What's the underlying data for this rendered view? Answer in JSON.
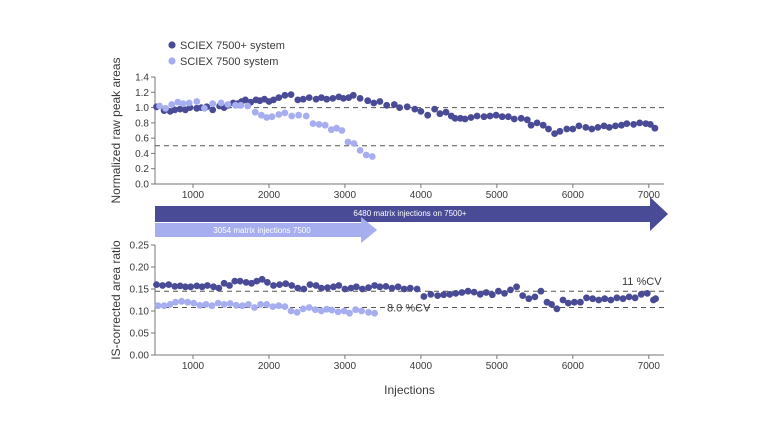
{
  "chart_data": [
    {
      "type": "scatter",
      "ylabel": "Normalized raw peak areas",
      "xlim": [
        500,
        7200
      ],
      "ylim": [
        0.0,
        1.4
      ],
      "yticks": [
        "0.0",
        "0.2",
        "0.4",
        "0.6",
        "0.8",
        "1.0",
        "1.2",
        "1.4"
      ],
      "xticks": [
        "1000",
        "2000",
        "3000",
        "4000",
        "5000",
        "6000",
        "7000"
      ],
      "reference_lines": [
        1.0,
        0.5
      ],
      "legend": [
        {
          "name": "SCIEX 7500+ system",
          "color": "#4a4b96"
        },
        {
          "name": "SCIEX 7500 system",
          "color": "#a6aef0"
        }
      ],
      "series": [
        {
          "name": "SCIEX 7500+ system",
          "color": "#4a4b96",
          "x": [
            520,
            620,
            700,
            760,
            830,
            900,
            960,
            1050,
            1110,
            1180,
            1260,
            1350,
            1410,
            1460,
            1530,
            1590,
            1640,
            1690,
            1760,
            1830,
            1880,
            1940,
            2000,
            2060,
            2130,
            2210,
            2290,
            2380,
            2450,
            2530,
            2620,
            2690,
            2760,
            2840,
            2920,
            2980,
            3050,
            3110,
            3200,
            3300,
            3380,
            3460,
            3550,
            3650,
            3720,
            3820,
            3920,
            4000,
            4090,
            4180,
            4250,
            4330,
            4400,
            4450,
            4520,
            4580,
            4660,
            4740,
            4830,
            4910,
            4990,
            5070,
            5150,
            5230,
            5320,
            5400,
            5450,
            5530,
            5610,
            5680,
            5760,
            5830,
            5920,
            6000,
            6080,
            6170,
            6250,
            6330,
            6410,
            6480,
            6560,
            6640,
            6710,
            6800,
            6880,
            6960,
            7020,
            7080
          ],
          "values": [
            1.01,
            0.96,
            0.95,
            0.97,
            0.98,
            0.97,
            1.0,
            0.99,
            1.0,
            1.01,
            0.97,
            1.02,
            1.0,
            1.03,
            1.06,
            1.05,
            1.08,
            1.1,
            1.07,
            1.1,
            1.09,
            1.11,
            1.08,
            1.1,
            1.13,
            1.16,
            1.17,
            1.1,
            1.11,
            1.13,
            1.11,
            1.13,
            1.11,
            1.12,
            1.14,
            1.12,
            1.13,
            1.16,
            1.12,
            1.09,
            1.06,
            1.08,
            1.03,
            1.04,
            1.0,
            1.01,
            0.98,
            0.95,
            0.9,
            0.98,
            0.92,
            0.94,
            0.89,
            0.86,
            0.86,
            0.85,
            0.87,
            0.89,
            0.88,
            0.89,
            0.9,
            0.88,
            0.88,
            0.85,
            0.86,
            0.84,
            0.77,
            0.8,
            0.77,
            0.72,
            0.66,
            0.69,
            0.72,
            0.72,
            0.76,
            0.74,
            0.72,
            0.74,
            0.76,
            0.74,
            0.76,
            0.77,
            0.79,
            0.78,
            0.8,
            0.79,
            0.78,
            0.73
          ]
        },
        {
          "name": "SCIEX 7500 system",
          "color": "#a6aef0",
          "x": [
            560,
            640,
            720,
            800,
            870,
            950,
            1050,
            1150,
            1260,
            1370,
            1460,
            1560,
            1630,
            1720,
            1820,
            1900,
            1970,
            2040,
            2130,
            2210,
            2300,
            2390,
            2490,
            2580,
            2660,
            2740,
            2820,
            2890,
            2960,
            3040,
            3120,
            3200,
            3280,
            3360
          ],
          "values": [
            1.02,
            0.99,
            1.04,
            1.07,
            1.05,
            1.06,
            1.08,
            0.99,
            1.05,
            1.06,
            1.04,
            1.03,
            1.03,
            1.02,
            0.94,
            0.9,
            0.87,
            0.88,
            0.91,
            0.93,
            0.89,
            0.9,
            0.89,
            0.79,
            0.78,
            0.77,
            0.71,
            0.73,
            0.7,
            0.55,
            0.53,
            0.44,
            0.38,
            0.36
          ]
        }
      ],
      "arrows": [
        {
          "label": "6480 matrix injections on 7500+",
          "from": 500,
          "to": 7200,
          "color": "#4a4b96"
        },
        {
          "label": "3054 matrix injections 7500",
          "from": 500,
          "to": 3450,
          "color": "#a6aef0"
        }
      ]
    },
    {
      "type": "scatter",
      "xlabel": "Injections",
      "ylabel": "IS-corrected area ratio",
      "xlim": [
        500,
        7200
      ],
      "ylim": [
        0.0,
        0.25
      ],
      "yticks": [
        "0.00",
        "0.05",
        "0.10",
        "0.15",
        "0.20",
        "0.25"
      ],
      "xticks": [
        "1000",
        "2000",
        "3000",
        "4000",
        "5000",
        "6000",
        "7000"
      ],
      "reference_lines": [
        0.145,
        0.108
      ],
      "annotations": [
        {
          "text": "11 %CV",
          "x": 7050,
          "y": 0.145
        },
        {
          "text": "8.0 %CV",
          "x": 3400,
          "y": 0.108
        }
      ],
      "series": [
        {
          "name": "SCIEX 7500+ system",
          "color": "#4a4b96",
          "x": [
            520,
            600,
            680,
            760,
            830,
            900,
            970,
            1050,
            1120,
            1190,
            1270,
            1340,
            1410,
            1480,
            1550,
            1620,
            1700,
            1770,
            1840,
            1910,
            1980,
            2060,
            2140,
            2220,
            2300,
            2380,
            2460,
            2540,
            2620,
            2690,
            2770,
            2850,
            2920,
            3000,
            3080,
            3150,
            3230,
            3310,
            3390,
            3460,
            3540,
            3620,
            3700,
            3780,
            3860,
            3950,
            4040,
            4130,
            4220,
            4300,
            4380,
            4460,
            4540,
            4620,
            4700,
            4780,
            4860,
            4940,
            5020,
            5100,
            5180,
            5260,
            5340,
            5420,
            5500,
            5580,
            5660,
            5720,
            5790,
            5870,
            5940,
            6020,
            6100,
            6180,
            6260,
            6340,
            6420,
            6500,
            6580,
            6660,
            6740,
            6820,
            6900,
            6980,
            7060,
            7090
          ],
          "values": [
            0.16,
            0.158,
            0.16,
            0.156,
            0.157,
            0.155,
            0.155,
            0.157,
            0.155,
            0.158,
            0.155,
            0.152,
            0.163,
            0.158,
            0.168,
            0.168,
            0.165,
            0.163,
            0.168,
            0.172,
            0.165,
            0.158,
            0.16,
            0.162,
            0.158,
            0.152,
            0.15,
            0.16,
            0.158,
            0.152,
            0.153,
            0.155,
            0.158,
            0.15,
            0.152,
            0.155,
            0.15,
            0.153,
            0.158,
            0.155,
            0.156,
            0.152,
            0.155,
            0.15,
            0.152,
            0.15,
            0.133,
            0.138,
            0.135,
            0.137,
            0.138,
            0.14,
            0.142,
            0.145,
            0.143,
            0.138,
            0.142,
            0.137,
            0.145,
            0.14,
            0.148,
            0.155,
            0.135,
            0.128,
            0.132,
            0.145,
            0.12,
            0.115,
            0.105,
            0.125,
            0.118,
            0.12,
            0.12,
            0.13,
            0.128,
            0.125,
            0.128,
            0.125,
            0.13,
            0.128,
            0.132,
            0.13,
            0.138,
            0.14,
            0.125,
            0.128
          ]
        },
        {
          "name": "SCIEX 7500 system",
          "color": "#a6aef0",
          "x": [
            540,
            620,
            700,
            770,
            850,
            930,
            1010,
            1090,
            1170,
            1250,
            1330,
            1410,
            1490,
            1570,
            1650,
            1730,
            1810,
            1890,
            1970,
            2050,
            2130,
            2210,
            2290,
            2370,
            2450,
            2530,
            2610,
            2690,
            2760,
            2830,
            2910,
            2990,
            3060,
            3140,
            3220,
            3310,
            3390
          ],
          "values": [
            0.112,
            0.112,
            0.115,
            0.12,
            0.122,
            0.12,
            0.118,
            0.113,
            0.115,
            0.112,
            0.118,
            0.115,
            0.117,
            0.113,
            0.112,
            0.115,
            0.108,
            0.115,
            0.115,
            0.11,
            0.112,
            0.11,
            0.1,
            0.097,
            0.105,
            0.108,
            0.103,
            0.1,
            0.104,
            0.102,
            0.098,
            0.1,
            0.095,
            0.103,
            0.1,
            0.097,
            0.095
          ]
        }
      ]
    }
  ]
}
